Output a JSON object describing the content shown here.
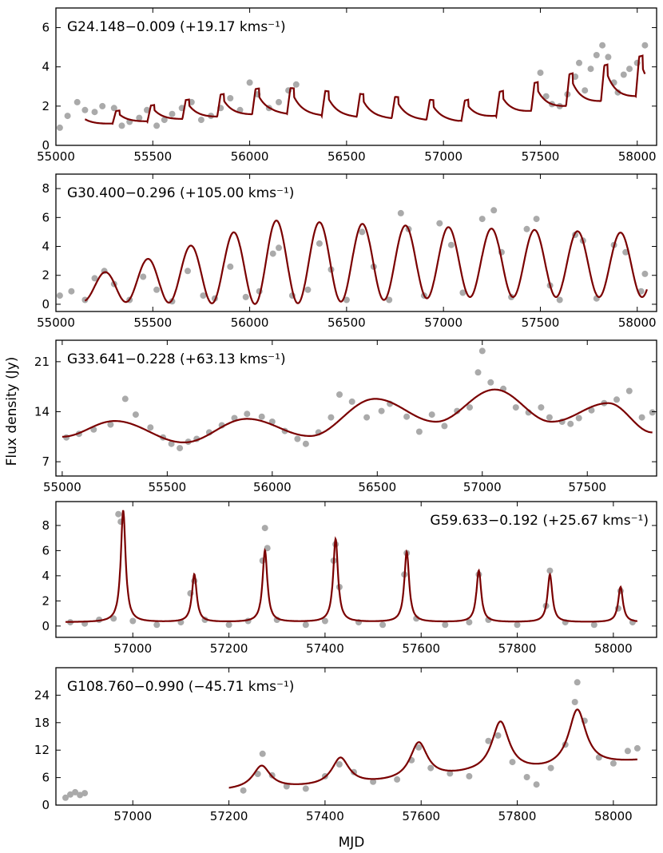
{
  "figure": {
    "ylabel": "Flux density (Jy)",
    "xlabel": "MJD"
  },
  "colors": {
    "points": "#aaaaaa",
    "model": "#7a0000",
    "axes": "#000000"
  },
  "chart_data": [
    {
      "type": "scatter",
      "title": "G24.148−0.009 (+19.17 kms⁻¹)",
      "xlim": [
        55000,
        58100
      ],
      "ylim": [
        0,
        7
      ],
      "xticks": [
        55000,
        55500,
        56000,
        56500,
        57000,
        57500,
        58000
      ],
      "yticks": [
        0,
        2,
        4,
        6
      ],
      "model": {
        "kind": "sawtooth",
        "start": 55150,
        "end": 58040,
        "period": 180,
        "phase": 55310,
        "rise": 18,
        "base": [
          1.0,
          1.6,
          1.2,
          2.5
        ],
        "peak": [
          1.5,
          3.0,
          2.2,
          4.6
        ]
      },
      "points": [
        [
          55020,
          0.9
        ],
        [
          55060,
          1.5
        ],
        [
          55110,
          2.2
        ],
        [
          55150,
          1.8
        ],
        [
          55200,
          1.7
        ],
        [
          55240,
          2.0
        ],
        [
          55300,
          1.9
        ],
        [
          55340,
          1.0
        ],
        [
          55380,
          1.2
        ],
        [
          55430,
          1.4
        ],
        [
          55470,
          1.8
        ],
        [
          55520,
          1.0
        ],
        [
          55560,
          1.3
        ],
        [
          55600,
          1.6
        ],
        [
          55650,
          1.9
        ],
        [
          55700,
          2.2
        ],
        [
          55750,
          1.3
        ],
        [
          55800,
          1.5
        ],
        [
          55850,
          1.9
        ],
        [
          55900,
          2.4
        ],
        [
          55950,
          1.8
        ],
        [
          56000,
          3.2
        ],
        [
          56040,
          2.6
        ],
        [
          56100,
          1.9
        ],
        [
          56150,
          2.2
        ],
        [
          56200,
          2.8
        ],
        [
          56240,
          3.1
        ],
        [
          57500,
          3.7
        ],
        [
          57530,
          2.5
        ],
        [
          57560,
          2.1
        ],
        [
          57600,
          2.0
        ],
        [
          57640,
          2.6
        ],
        [
          57680,
          3.5
        ],
        [
          57700,
          4.2
        ],
        [
          57730,
          2.8
        ],
        [
          57760,
          3.9
        ],
        [
          57790,
          4.6
        ],
        [
          57820,
          5.1
        ],
        [
          57850,
          4.5
        ],
        [
          57880,
          3.2
        ],
        [
          57900,
          2.7
        ],
        [
          57930,
          3.6
        ],
        [
          57960,
          3.9
        ],
        [
          58000,
          4.2
        ],
        [
          58040,
          5.1
        ]
      ]
    },
    {
      "type": "scatter",
      "title": "G30.400−0.296 (+105.00 kms⁻¹)",
      "xlim": [
        55000,
        58100
      ],
      "ylim": [
        -0.5,
        9
      ],
      "xticks": [
        55000,
        55500,
        56000,
        56500,
        57000,
        57500,
        58000
      ],
      "yticks": [
        0,
        2,
        4,
        6,
        8
      ],
      "model": {
        "kind": "sine",
        "start": 55150,
        "end": 58050,
        "period": 222,
        "peakAt": 55250,
        "amp": [
          0.8,
          2.9,
          2.4,
          2.2
        ],
        "mid": [
          1.0,
          2.9,
          2.9,
          2.7
        ]
      },
      "points": [
        [
          55020,
          0.6
        ],
        [
          55080,
          0.9
        ],
        [
          55150,
          0.3
        ],
        [
          55200,
          1.8
        ],
        [
          55250,
          2.3
        ],
        [
          55300,
          1.4
        ],
        [
          55380,
          0.3
        ],
        [
          55450,
          1.9
        ],
        [
          55520,
          1.0
        ],
        [
          55600,
          0.2
        ],
        [
          55680,
          2.3
        ],
        [
          55760,
          0.6
        ],
        [
          55820,
          0.4
        ],
        [
          55900,
          2.6
        ],
        [
          55980,
          0.5
        ],
        [
          56050,
          0.9
        ],
        [
          56120,
          3.5
        ],
        [
          56150,
          3.9
        ],
        [
          56220,
          0.6
        ],
        [
          56300,
          1.0
        ],
        [
          56360,
          4.2
        ],
        [
          56420,
          2.4
        ],
        [
          56500,
          0.3
        ],
        [
          56580,
          5.0
        ],
        [
          56640,
          2.6
        ],
        [
          56720,
          0.3
        ],
        [
          56780,
          6.3
        ],
        [
          56820,
          5.2
        ],
        [
          56900,
          0.6
        ],
        [
          56980,
          5.6
        ],
        [
          57040,
          4.1
        ],
        [
          57100,
          0.8
        ],
        [
          57200,
          5.9
        ],
        [
          57260,
          6.5
        ],
        [
          57300,
          3.6
        ],
        [
          57350,
          0.5
        ],
        [
          57430,
          5.2
        ],
        [
          57480,
          5.9
        ],
        [
          57550,
          1.3
        ],
        [
          57600,
          0.3
        ],
        [
          57680,
          4.8
        ],
        [
          57720,
          4.4
        ],
        [
          57790,
          0.4
        ],
        [
          57880,
          4.1
        ],
        [
          57940,
          3.6
        ],
        [
          58020,
          0.9
        ],
        [
          58040,
          2.1
        ]
      ]
    },
    {
      "type": "scatter",
      "title": "G33.641−0.228 (+63.13 kms⁻¹)",
      "xlim": [
        54970,
        57830
      ],
      "ylim": [
        5,
        24
      ],
      "xticks": [
        55000,
        55500,
        56000,
        56500,
        57000,
        57500
      ],
      "yticks": [
        7,
        14,
        21
      ],
      "model": {
        "kind": "smooth",
        "start": 55000,
        "end": 57810,
        "knots": [
          [
            55000,
            10.5
          ],
          [
            55250,
            12.7
          ],
          [
            55580,
            9.7
          ],
          [
            55880,
            13.0
          ],
          [
            56180,
            10.6
          ],
          [
            56490,
            15.8
          ],
          [
            56780,
            12.6
          ],
          [
            57060,
            17.1
          ],
          [
            57330,
            12.6
          ],
          [
            57600,
            15.2
          ],
          [
            57810,
            11.1
          ]
        ]
      },
      "points": [
        [
          55020,
          10.4
        ],
        [
          55080,
          10.9
        ],
        [
          55150,
          11.5
        ],
        [
          55230,
          12.2
        ],
        [
          55300,
          15.8
        ],
        [
          55350,
          13.6
        ],
        [
          55420,
          11.8
        ],
        [
          55480,
          10.4
        ],
        [
          55520,
          9.5
        ],
        [
          55560,
          8.9
        ],
        [
          55600,
          9.8
        ],
        [
          55640,
          10.2
        ],
        [
          55700,
          11.1
        ],
        [
          55760,
          12.1
        ],
        [
          55820,
          13.1
        ],
        [
          55880,
          13.7
        ],
        [
          55950,
          13.3
        ],
        [
          56000,
          12.6
        ],
        [
          56060,
          11.3
        ],
        [
          56120,
          10.2
        ],
        [
          56160,
          9.5
        ],
        [
          56220,
          11.1
        ],
        [
          56280,
          13.2
        ],
        [
          56320,
          16.4
        ],
        [
          56380,
          15.4
        ],
        [
          56450,
          13.2
        ],
        [
          56520,
          14.1
        ],
        [
          56560,
          15.1
        ],
        [
          56640,
          13.3
        ],
        [
          56700,
          11.2
        ],
        [
          56760,
          13.6
        ],
        [
          56820,
          12.0
        ],
        [
          56880,
          14.1
        ],
        [
          56940,
          14.6
        ],
        [
          56980,
          19.5
        ],
        [
          57000,
          22.5
        ],
        [
          57040,
          18.1
        ],
        [
          57100,
          17.2
        ],
        [
          57160,
          14.6
        ],
        [
          57220,
          13.9
        ],
        [
          57280,
          14.6
        ],
        [
          57320,
          13.2
        ],
        [
          57380,
          12.6
        ],
        [
          57420,
          12.3
        ],
        [
          57460,
          13.1
        ],
        [
          57520,
          14.2
        ],
        [
          57580,
          15.2
        ],
        [
          57640,
          15.7
        ],
        [
          57700,
          16.9
        ],
        [
          57760,
          13.2
        ],
        [
          57810,
          13.9
        ]
      ]
    },
    {
      "type": "scatter",
      "title": "G59.633−0.192 (+25.67 kms⁻¹)",
      "titleAlign": "right",
      "xlim": [
        56840,
        58090
      ],
      "ylim": [
        -0.9,
        9.9
      ],
      "xticks": [
        57000,
        57200,
        57400,
        57600,
        57800,
        58000
      ],
      "yticks": [
        0,
        2,
        4,
        6,
        8
      ],
      "model": {
        "kind": "flares",
        "start": 56860,
        "end": 58050,
        "baseline": 0.3,
        "width": 6,
        "flares": [
          [
            56980,
            8.9
          ],
          [
            57128,
            3.8
          ],
          [
            57275,
            5.7
          ],
          [
            57422,
            6.6
          ],
          [
            57570,
            5.6
          ],
          [
            57720,
            4.1
          ],
          [
            57868,
            3.8
          ],
          [
            58015,
            2.8
          ]
        ]
      },
      "points": [
        [
          56870,
          0.3
        ],
        [
          56900,
          0.2
        ],
        [
          56930,
          0.5
        ],
        [
          56960,
          0.6
        ],
        [
          56970,
          8.9
        ],
        [
          56975,
          8.3
        ],
        [
          57000,
          0.4
        ],
        [
          57050,
          0.1
        ],
        [
          57100,
          0.3
        ],
        [
          57120,
          2.6
        ],
        [
          57128,
          3.6
        ],
        [
          57150,
          0.5
        ],
        [
          57200,
          0.1
        ],
        [
          57240,
          0.4
        ],
        [
          57270,
          5.2
        ],
        [
          57275,
          7.8
        ],
        [
          57280,
          6.2
        ],
        [
          57300,
          0.5
        ],
        [
          57360,
          0.1
        ],
        [
          57400,
          0.4
        ],
        [
          57418,
          5.2
        ],
        [
          57422,
          6.5
        ],
        [
          57430,
          3.1
        ],
        [
          57470,
          0.3
        ],
        [
          57520,
          0.1
        ],
        [
          57565,
          4.1
        ],
        [
          57570,
          5.8
        ],
        [
          57590,
          0.6
        ],
        [
          57650,
          0.1
        ],
        [
          57700,
          0.3
        ],
        [
          57720,
          4.1
        ],
        [
          57740,
          0.5
        ],
        [
          57800,
          0.1
        ],
        [
          57860,
          1.6
        ],
        [
          57868,
          4.4
        ],
        [
          57900,
          0.3
        ],
        [
          57960,
          0.1
        ],
        [
          58010,
          1.4
        ],
        [
          58015,
          2.8
        ],
        [
          58040,
          0.3
        ]
      ]
    },
    {
      "type": "scatter",
      "title": "G108.760−0.990 (−45.71 kms⁻¹)",
      "xlim": [
        56840,
        58090
      ],
      "ylim": [
        0,
        30
      ],
      "xticks": [
        57000,
        57200,
        57400,
        57600,
        57800,
        58000
      ],
      "yticks": [
        0,
        6,
        12,
        18,
        24
      ],
      "model": {
        "kind": "flares",
        "start": 57200,
        "end": 58050,
        "baseline": 3.2,
        "width": 22,
        "flares": [
          [
            57268,
            5.0
          ],
          [
            57432,
            6.0
          ],
          [
            57595,
            8.0
          ],
          [
            57765,
            11.0
          ],
          [
            57925,
            12.5
          ]
        ],
        "ramp": [
          [
            57200,
            3.2
          ],
          [
            57420,
            4.0
          ],
          [
            57560,
            5.0
          ],
          [
            57700,
            6.5
          ],
          [
            57860,
            7.4
          ],
          [
            58050,
            9.5
          ]
        ]
      },
      "points": [
        [
          56860,
          1.6
        ],
        [
          56870,
          2.3
        ],
        [
          56880,
          2.8
        ],
        [
          56890,
          2.2
        ],
        [
          56900,
          2.6
        ],
        [
          57230,
          3.2
        ],
        [
          57260,
          6.8
        ],
        [
          57270,
          11.2
        ],
        [
          57290,
          6.5
        ],
        [
          57320,
          4.1
        ],
        [
          57360,
          3.6
        ],
        [
          57400,
          6.3
        ],
        [
          57430,
          8.9
        ],
        [
          57460,
          7.2
        ],
        [
          57500,
          5.1
        ],
        [
          57550,
          5.6
        ],
        [
          57580,
          9.8
        ],
        [
          57595,
          12.6
        ],
        [
          57620,
          8.1
        ],
        [
          57660,
          6.9
        ],
        [
          57700,
          6.3
        ],
        [
          57740,
          14.0
        ],
        [
          57760,
          15.2
        ],
        [
          57790,
          9.4
        ],
        [
          57820,
          6.1
        ],
        [
          57840,
          4.5
        ],
        [
          57870,
          8.1
        ],
        [
          57900,
          13.2
        ],
        [
          57920,
          22.5
        ],
        [
          57925,
          26.8
        ],
        [
          57940,
          18.4
        ],
        [
          57970,
          10.4
        ],
        [
          58000,
          9.1
        ],
        [
          58030,
          11.8
        ],
        [
          58050,
          12.4
        ]
      ]
    }
  ]
}
